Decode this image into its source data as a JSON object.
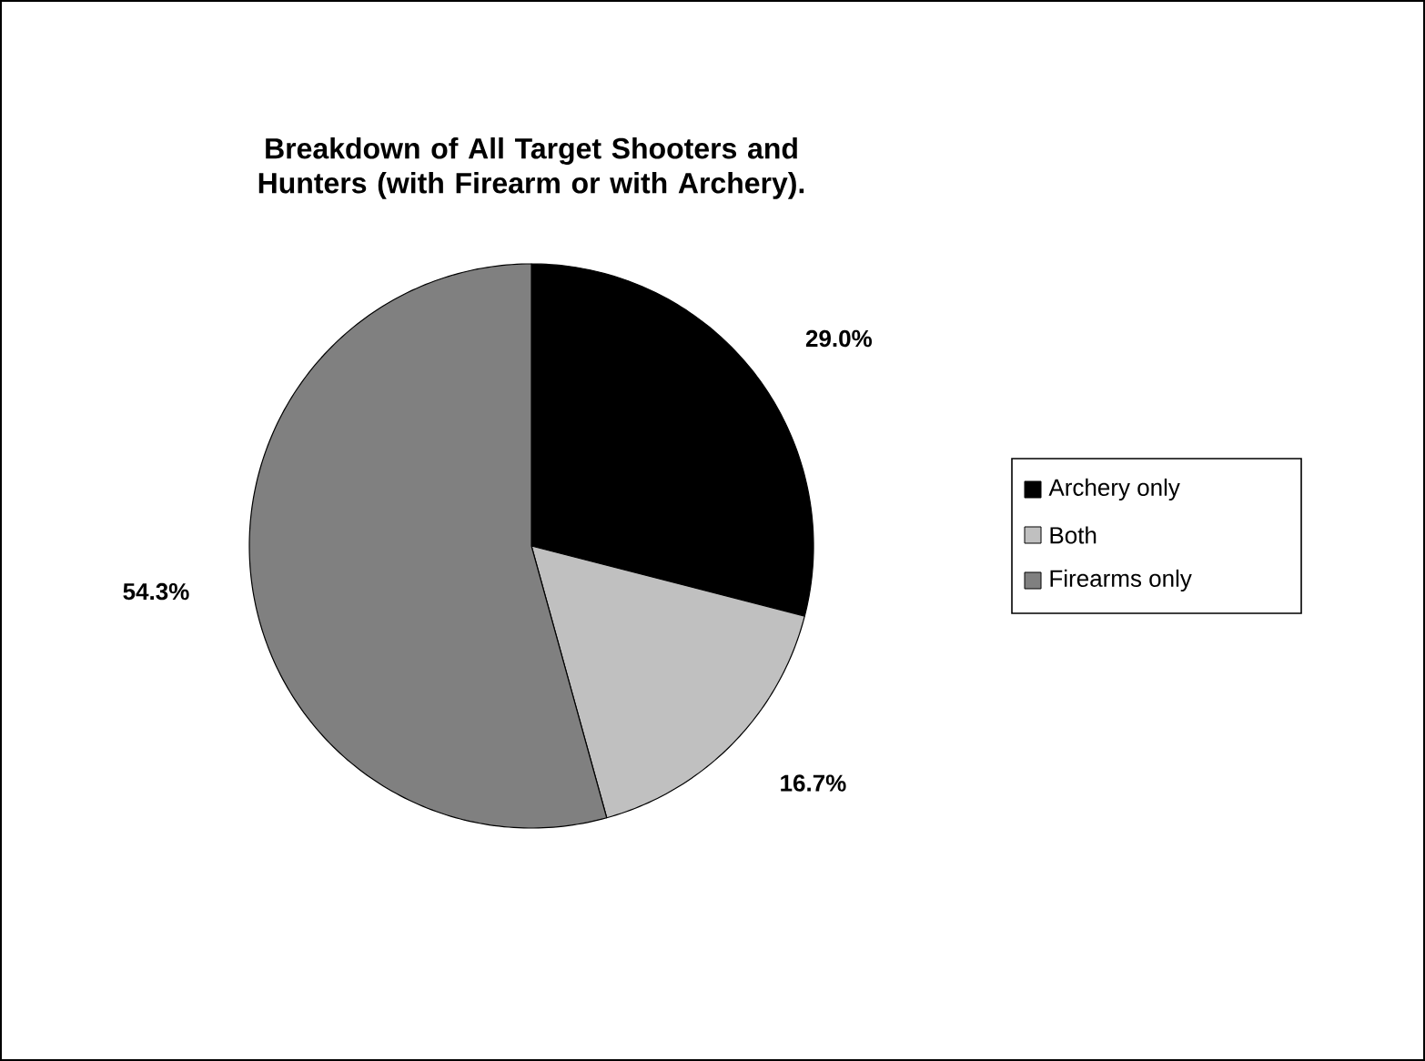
{
  "chart_data": {
    "type": "pie",
    "title": "Breakdown of All Target Shooters and Hunters (with Firearm or with Archery).",
    "categories": [
      "Archery only",
      "Both",
      "Firearms only"
    ],
    "values": [
      29.0,
      16.7,
      54.3
    ],
    "value_labels": [
      "29.0%",
      "16.7%",
      "54.3%"
    ],
    "colors": [
      "#000000",
      "#c0c0c0",
      "#808080"
    ],
    "legend": "right"
  }
}
